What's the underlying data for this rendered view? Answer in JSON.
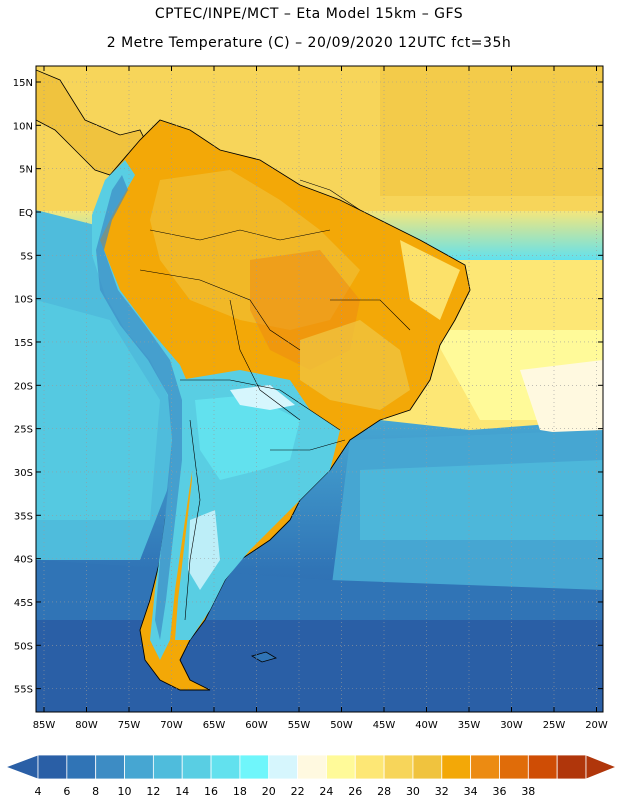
{
  "header": {
    "title_line1": "CPTEC/INPE/MCT –  Eta Model 15km – GFS",
    "title_line2": "2 Metre Temperature (C) – 20/09/2020 12UTC fct=35h"
  },
  "axes": {
    "latitude_labels": [
      "15N",
      "10N",
      "5N",
      "EQ",
      "5S",
      "10S",
      "15S",
      "20S",
      "25S",
      "30S",
      "35S",
      "40S",
      "45S",
      "50S",
      "55S"
    ],
    "longitude_labels": [
      "85W",
      "80W",
      "75W",
      "70W",
      "65W",
      "60W",
      "55W",
      "50W",
      "45W",
      "40W",
      "35W",
      "30W",
      "25W",
      "20W"
    ]
  },
  "colorbar": {
    "tick_labels": [
      "4",
      "6",
      "8",
      "10",
      "12",
      "14",
      "16",
      "18",
      "20",
      "22",
      "24",
      "26",
      "28",
      "30",
      "32",
      "34",
      "36",
      "38"
    ],
    "bin_colors": [
      "#2a5fa6",
      "#3074b6",
      "#3d8cc4",
      "#46a6d2",
      "#4fbcdc",
      "#59cee3",
      "#62e1ee",
      "#6ff6fb",
      "#d6f6fd",
      "#fff9e0",
      "#fffa99",
      "#fde775",
      "#f7d55a",
      "#f0c33e",
      "#f3a807",
      "#ec8b12",
      "#e06c09",
      "#cf4d05",
      "#b0360b"
    ],
    "low_arrow_color": "#2a5fa6",
    "high_arrow_color": "#b0360b"
  }
}
